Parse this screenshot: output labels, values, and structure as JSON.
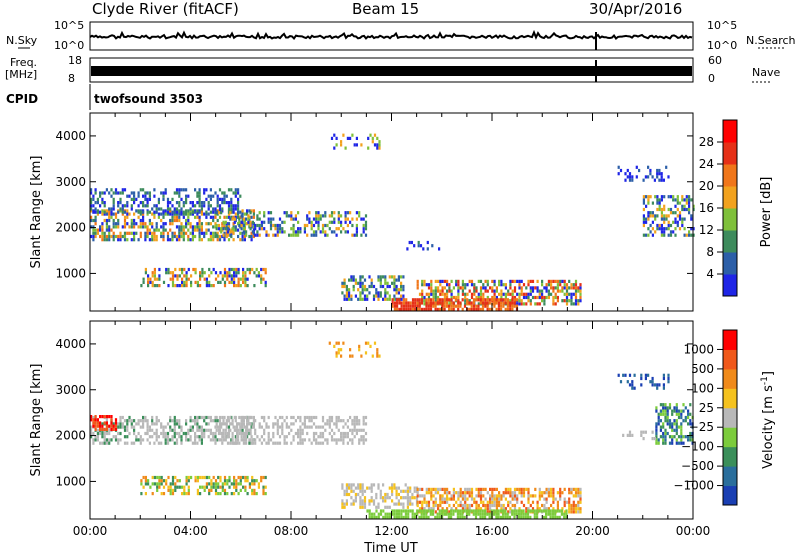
{
  "header": {
    "title_left": "Clyde River (fitACF)",
    "title_center": "Beam 15",
    "title_right": "30/Apr/2016"
  },
  "top_panels": {
    "nsky_label": "N.Sky",
    "nsky_ticks": [
      "10^5",
      "10^0"
    ],
    "nsearch_label": "N.Search",
    "nsearch_ticks": [
      "10^5",
      "10^0"
    ],
    "freq_label": "Freq.",
    "freq_unit": "[MHz]",
    "freq_ticks": [
      "18",
      "8"
    ],
    "nave_label": "Nave",
    "nave_ticks": [
      "60",
      "0"
    ],
    "cpid_label": "CPID",
    "cpid_value": "twofsound 3503"
  },
  "chart_data": [
    {
      "type": "heatmap",
      "name": "power",
      "ylabel": "Slant Range [km]",
      "yticks": [
        "1000",
        "2000",
        "3000",
        "4000"
      ],
      "ylim": [
        180,
        4500
      ],
      "xlim": [
        "00:00",
        "24:00"
      ],
      "colorbar_label": "Power [dB]",
      "colorbar_ticks": [
        "4",
        "8",
        "12",
        "16",
        "20",
        "24",
        "28"
      ],
      "colorbar_colors": [
        "#1f25e6",
        "#2c5fa8",
        "#3d8b5c",
        "#7fc03a",
        "#f2a21e",
        "#f0761a",
        "#e63017",
        "#ff0000"
      ]
    },
    {
      "type": "heatmap",
      "name": "velocity",
      "ylabel": "Slant Range [km]",
      "yticks": [
        "1000",
        "2000",
        "3000",
        "4000"
      ],
      "ylim": [
        180,
        4500
      ],
      "xlim": [
        "00:00",
        "24:00"
      ],
      "xlabel": "Time UT",
      "xticks": [
        "00:00",
        "04:00",
        "08:00",
        "12:00",
        "16:00",
        "20:00",
        "00:00"
      ],
      "colorbar_label": "Velocity [m s",
      "colorbar_label_exp": "-1",
      "colorbar_label_end": "]",
      "colorbar_ticks": [
        "1000",
        "500",
        "100",
        "25",
        "−25",
        "−100",
        "−500",
        "−1000"
      ],
      "colorbar_colors": [
        "#1a3fb3",
        "#2a6e9c",
        "#3b8f5a",
        "#7ccc3c",
        "#b8b8b8",
        "#f5c21e",
        "#f08a1a",
        "#f0581a",
        "#ff0000"
      ]
    }
  ]
}
